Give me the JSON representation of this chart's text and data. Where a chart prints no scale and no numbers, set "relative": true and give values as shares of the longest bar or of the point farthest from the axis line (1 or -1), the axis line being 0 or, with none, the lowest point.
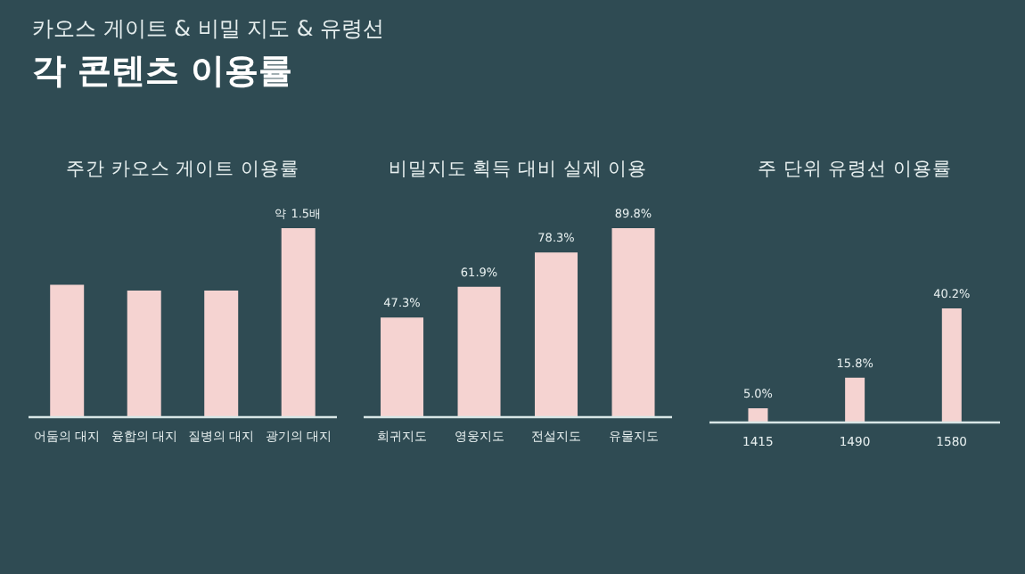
{
  "chart_data": [
    {
      "type": "other",
      "title": "각 콘텐츠 이용률",
      "subtitle": "카오스 게이트 & 비밀 지도 & 유령선"
    },
    {
      "type": "bar",
      "title": "주간 카오스 게이트 이용률",
      "categories": [
        "어둠의 대지",
        "융합의 대지",
        "질병의 대지",
        "광기의 대지"
      ],
      "values": [
        0.7,
        0.67,
        0.67,
        1
      ],
      "relative": true,
      "color": "#f5d3d1",
      "annotations": [
        "약 1.5배"
      ]
    },
    {
      "type": "bar",
      "title": "비밀지도 획득 대비 실제 이용",
      "categories": [
        "희귀지도",
        "영웅지도",
        "전설지도",
        "유물지도"
      ],
      "values": [
        47.3,
        61.9,
        78.3,
        89.8
      ],
      "color": "#f5d3d1",
      "value_labels": [
        "47.3%",
        "61.9%",
        "78.3%",
        "89.8%"
      ]
    },
    {
      "type": "bar",
      "title": "주 단위 유령선 이용률",
      "categories": [
        "1415",
        "1490",
        "1580"
      ],
      "values": [
        5.0,
        15.8,
        40.2
      ],
      "color": "#f5d3d1",
      "value_labels": [
        "5.0%",
        "15.8%",
        "40.2%"
      ]
    }
  ]
}
